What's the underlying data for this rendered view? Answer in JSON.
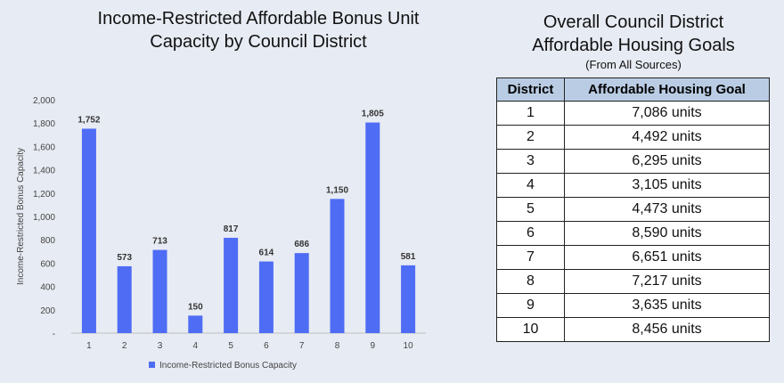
{
  "left_panel": {
    "title_line1": "Income-Restricted Affordable Bonus Unit",
    "title_line2": "Capacity by Council District"
  },
  "right_panel": {
    "title_line1": "Overall Council District",
    "title_line2": "Affordable Housing Goals",
    "subtitle": "(From All Sources)",
    "table": {
      "headers": [
        "District",
        "Affordable Housing Goal"
      ],
      "rows": [
        [
          "1",
          "7,086 units"
        ],
        [
          "2",
          "4,492 units"
        ],
        [
          "3",
          "6,295 units"
        ],
        [
          "4",
          "3,105 units"
        ],
        [
          "5",
          "4,473 units"
        ],
        [
          "6",
          "8,590 units"
        ],
        [
          "7",
          "6,651 units"
        ],
        [
          "8",
          "7,217 units"
        ],
        [
          "9",
          "3,635 units"
        ],
        [
          "10",
          "8,456 units"
        ]
      ]
    }
  },
  "chart_data": {
    "type": "bar",
    "title": "Income-Restricted Affordable Bonus Unit Capacity by Council District",
    "categories": [
      "1",
      "2",
      "3",
      "4",
      "5",
      "6",
      "7",
      "8",
      "9",
      "10"
    ],
    "series": [
      {
        "name": "Income-Restricted Bonus Capacity",
        "values": [
          1752,
          573,
          713,
          150,
          817,
          614,
          686,
          1150,
          1805,
          581
        ],
        "data_labels": [
          "1,752",
          "573",
          "713",
          "150",
          "817",
          "614",
          "686",
          "1,150",
          "1,805",
          "581"
        ],
        "color": "#4e6cf4"
      }
    ],
    "xlabel": "",
    "ylabel": "Income-Restricted Bonus Capacity",
    "ylim": [
      0,
      2000
    ],
    "yticks": [
      0,
      200,
      400,
      600,
      800,
      1000,
      1200,
      1400,
      1600,
      1800,
      2000
    ],
    "ytick_labels": [
      "-",
      "200",
      "400",
      "600",
      "800",
      "1,000",
      "1,200",
      "1,400",
      "1,600",
      "1,800",
      "2,000"
    ],
    "grid": false,
    "legend_position": "bottom"
  }
}
